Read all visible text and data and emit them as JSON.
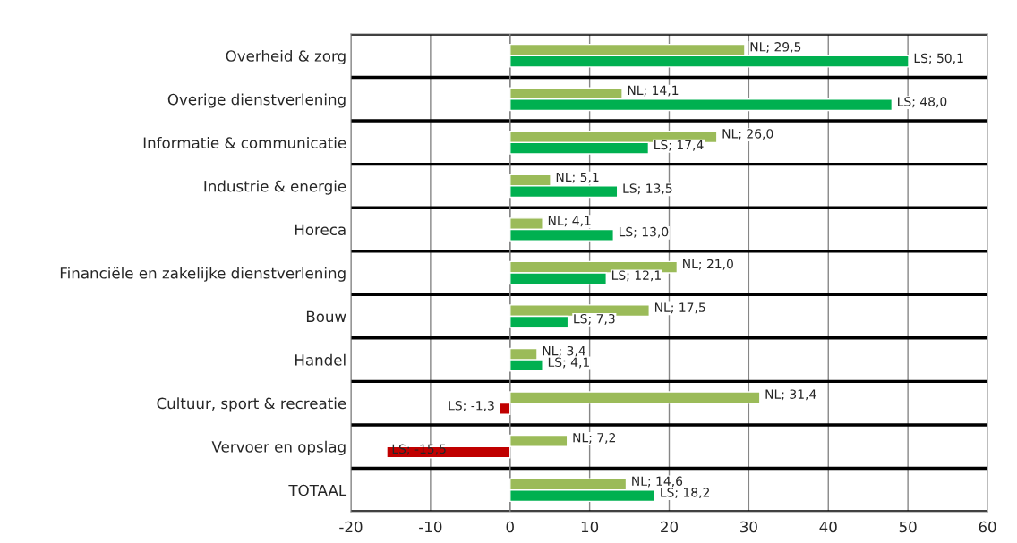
{
  "chart_data": {
    "type": "bar",
    "orientation": "horizontal",
    "categories": [
      "Overheid & zorg",
      "Overige dienstverlening",
      "Informatie & communicatie",
      "Industrie & energie",
      "Horeca",
      "Financiële en zakelijke dienstverlening",
      "Bouw",
      "Handel",
      "Cultuur, sport & recreatie",
      "Vervoer en opslag",
      "TOTAAL"
    ],
    "series": [
      {
        "color": "#9bbb59",
        "values": [
          29.5,
          14.1,
          26.0,
          5.1,
          4.1,
          21.0,
          17.5,
          3.4,
          31.4,
          7.2,
          14.6
        ],
        "value_labels": [
          "NL; 29,5",
          "NL; 14,1",
          "NL; 26,0",
          "NL; 5,1",
          "NL; 4,1",
          "NL; 21,0",
          "NL; 17,5",
          "NL; 3,4",
          "NL; 31,4",
          "NL; 7,2",
          "NL; 14,6"
        ]
      },
      {
        "colors": [
          "#00b050",
          "#00b050",
          "#00b050",
          "#00b050",
          "#00b050",
          "#00b050",
          "#00b050",
          "#00b050",
          "#c00000",
          "#c00000",
          "#00b050"
        ],
        "values": [
          50.1,
          48.0,
          17.4,
          13.5,
          13.0,
          12.1,
          7.3,
          4.1,
          -1.3,
          -15.5,
          18.2
        ],
        "value_labels": [
          "LS; 50,1",
          "LS; 48,0",
          "LS; 17,4",
          "LS; 13,5",
          "LS; 13,0",
          "LS; 12,1",
          "LS; 7,3",
          "LS; 4,1",
          "LS; -1,3",
          "LS; -15,5",
          "LS; 18,2"
        ]
      }
    ],
    "xlim": [
      -20,
      60
    ],
    "xticks": [
      -20,
      -10,
      0,
      10,
      20,
      30,
      40,
      50,
      60
    ],
    "grid": true,
    "legend": false
  }
}
